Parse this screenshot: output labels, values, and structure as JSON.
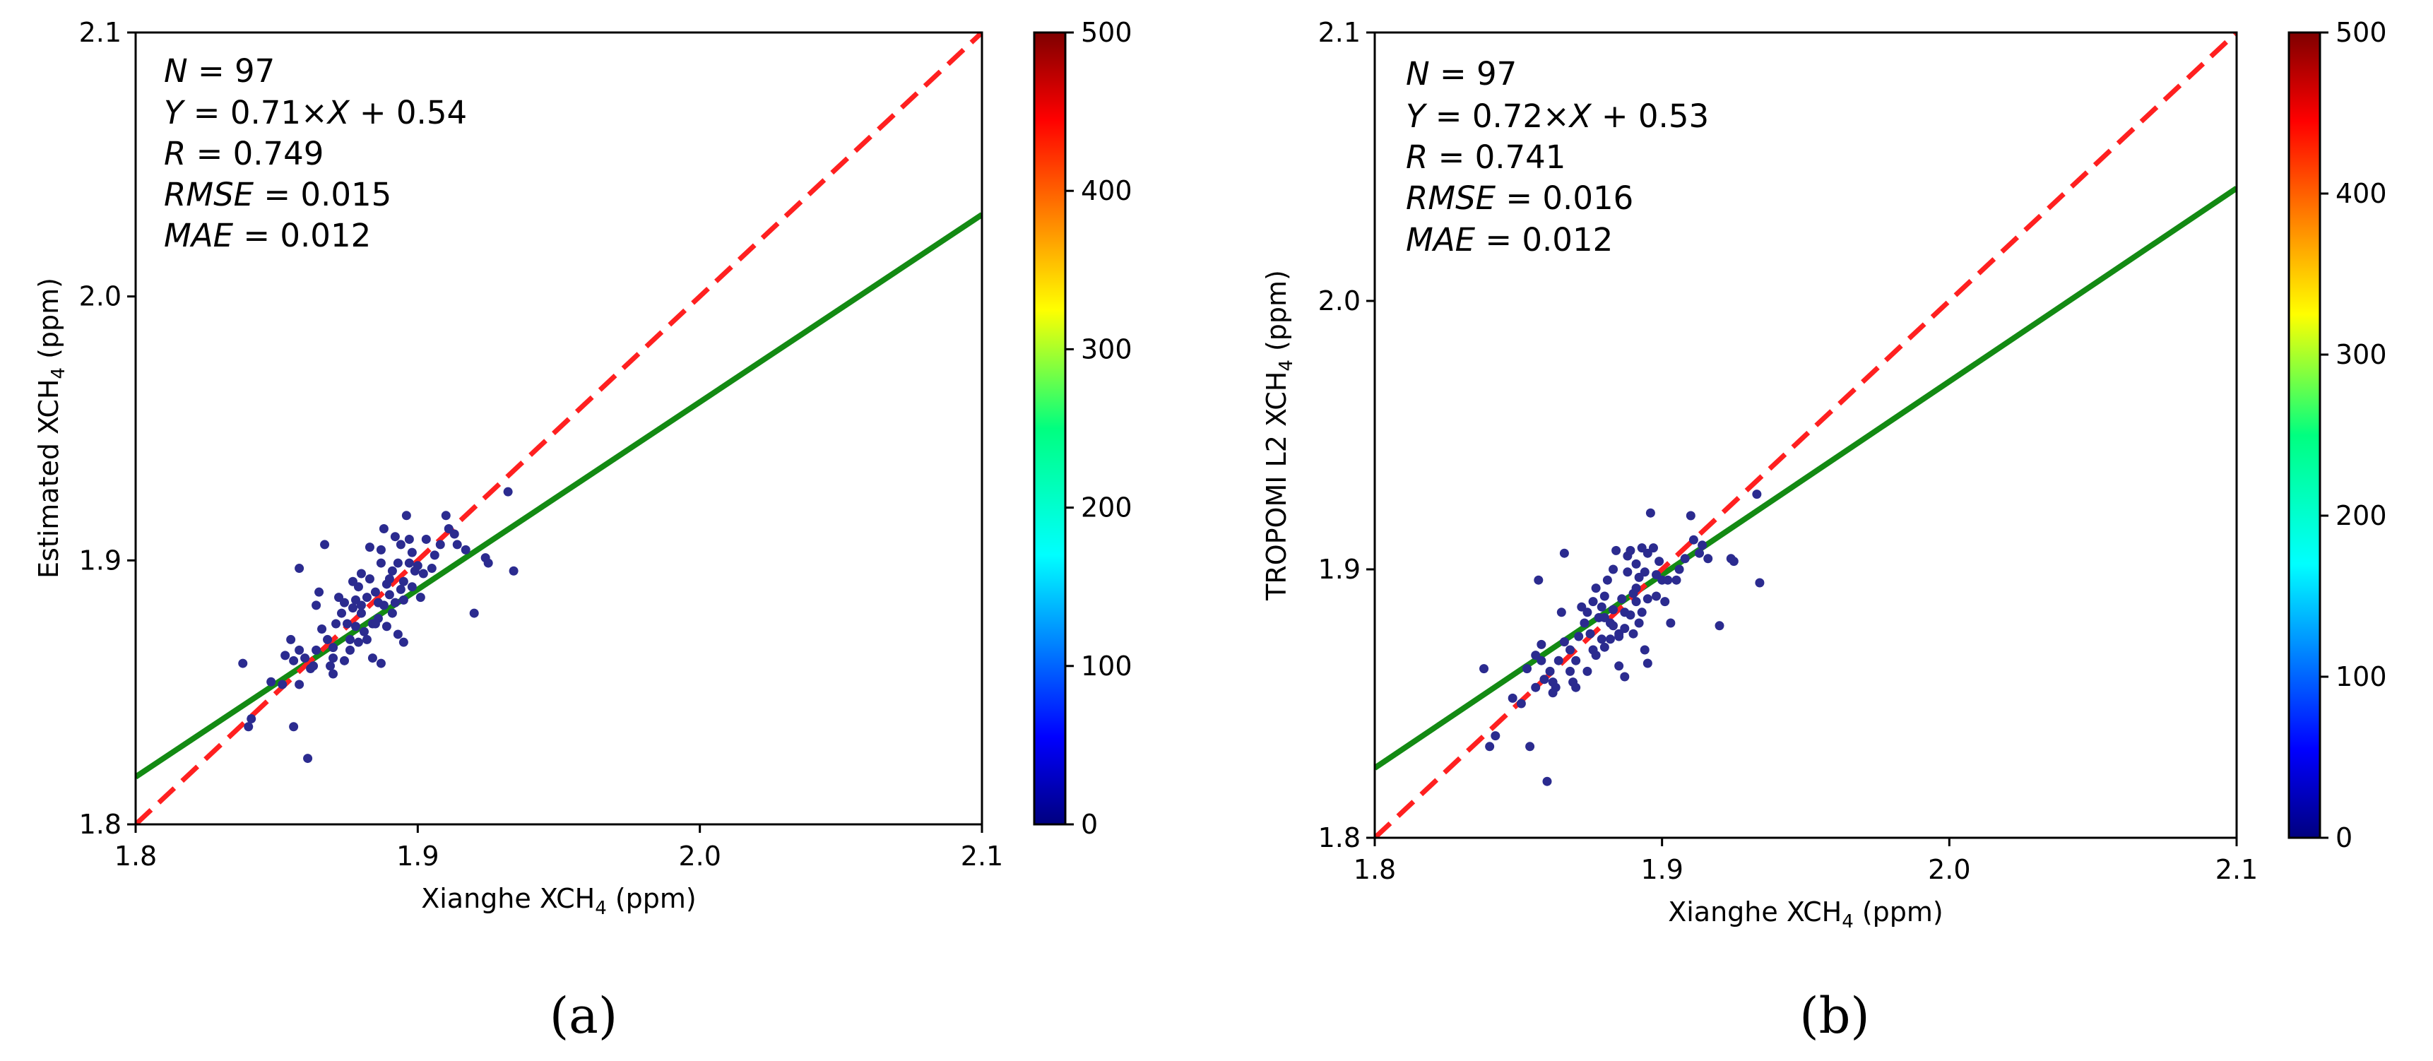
{
  "panels": [
    {
      "label": "(a)",
      "stats": {
        "n": "97",
        "equation_slope": "0.71",
        "equation_intercept": "0.54",
        "r": "0.749",
        "rmse": "0.015",
        "mae": "0.012"
      },
      "axis_label_x": {
        "pre": "Xianghe XCH",
        "sub": "4",
        "post": " (ppm)"
      },
      "axis_label_y": {
        "pre": "Estimated XCH",
        "sub": "4",
        "post": " (ppm)"
      }
    },
    {
      "label": "(b)",
      "stats": {
        "n": "97",
        "equation_slope": "0.72",
        "equation_intercept": "0.53",
        "r": "0.741",
        "rmse": "0.016",
        "mae": "0.012"
      },
      "axis_label_x": {
        "pre": "Xianghe XCH",
        "sub": "4",
        "post": " (ppm)"
      },
      "axis_label_y": {
        "pre": "TROPOMI L2 XCH",
        "sub": "4",
        "post": " (ppm)"
      }
    }
  ],
  "chart_data": [
    {
      "type": "scatter",
      "xlabel": "Xianghe XCH4 (ppm)",
      "ylabel": "Estimated XCH4 (ppm)",
      "xlim": [
        1.8,
        2.1
      ],
      "ylim": [
        1.8,
        2.1
      ],
      "x_ticks": [
        "1.8",
        "1.9",
        "2.0",
        "2.1"
      ],
      "y_ticks": [
        "1.8",
        "1.9",
        "2.0",
        "2.1"
      ],
      "colorbar": {
        "min": 0,
        "max": 500,
        "ticks": [
          "0",
          "100",
          "200",
          "300",
          "400",
          "500"
        ],
        "colormap": "jet"
      },
      "point_color": "#2b2b8f",
      "reference_line": {
        "style": "dashed",
        "color": "#ff2020",
        "slope": 1,
        "intercept": 0
      },
      "fit_line": {
        "color": "#138a13",
        "slope": 0.71,
        "intercept": 0.54
      },
      "points": [
        [
          1.838,
          1.861
        ],
        [
          1.841,
          1.84
        ],
        [
          1.84,
          1.837
        ],
        [
          1.852,
          1.853
        ],
        [
          1.856,
          1.837
        ],
        [
          1.858,
          1.853
        ],
        [
          1.856,
          1.862
        ],
        [
          1.855,
          1.87
        ],
        [
          1.858,
          1.866
        ],
        [
          1.858,
          1.897
        ],
        [
          1.86,
          1.863
        ],
        [
          1.861,
          1.825
        ],
        [
          1.862,
          1.859
        ],
        [
          1.863,
          1.86
        ],
        [
          1.864,
          1.866
        ],
        [
          1.864,
          1.883
        ],
        [
          1.865,
          1.888
        ],
        [
          1.867,
          1.906
        ],
        [
          1.868,
          1.87
        ],
        [
          1.869,
          1.86
        ],
        [
          1.87,
          1.863
        ],
        [
          1.87,
          1.867
        ],
        [
          1.871,
          1.876
        ],
        [
          1.872,
          1.886
        ],
        [
          1.873,
          1.88
        ],
        [
          1.874,
          1.884
        ],
        [
          1.875,
          1.876
        ],
        [
          1.876,
          1.87
        ],
        [
          1.876,
          1.866
        ],
        [
          1.877,
          1.882
        ],
        [
          1.878,
          1.875
        ],
        [
          1.878,
          1.885
        ],
        [
          1.879,
          1.869
        ],
        [
          1.879,
          1.89
        ],
        [
          1.88,
          1.895
        ],
        [
          1.88,
          1.88
        ],
        [
          1.881,
          1.873
        ],
        [
          1.882,
          1.886
        ],
        [
          1.882,
          1.87
        ],
        [
          1.883,
          1.893
        ],
        [
          1.883,
          1.905
        ],
        [
          1.884,
          1.876
        ],
        [
          1.884,
          1.863
        ],
        [
          1.885,
          1.888
        ],
        [
          1.886,
          1.884
        ],
        [
          1.886,
          1.878
        ],
        [
          1.887,
          1.899
        ],
        [
          1.887,
          1.904
        ],
        [
          1.888,
          1.883
        ],
        [
          1.888,
          1.912
        ],
        [
          1.889,
          1.891
        ],
        [
          1.889,
          1.875
        ],
        [
          1.89,
          1.887
        ],
        [
          1.89,
          1.893
        ],
        [
          1.891,
          1.88
        ],
        [
          1.891,
          1.896
        ],
        [
          1.892,
          1.884
        ],
        [
          1.892,
          1.909
        ],
        [
          1.893,
          1.899
        ],
        [
          1.893,
          1.872
        ],
        [
          1.894,
          1.889
        ],
        [
          1.894,
          1.906
        ],
        [
          1.895,
          1.885
        ],
        [
          1.895,
          1.892
        ],
        [
          1.896,
          1.917
        ],
        [
          1.897,
          1.908
        ],
        [
          1.897,
          1.899
        ],
        [
          1.898,
          1.89
        ],
        [
          1.898,
          1.903
        ],
        [
          1.899,
          1.896
        ],
        [
          1.9,
          1.898
        ],
        [
          1.901,
          1.886
        ],
        [
          1.902,
          1.895
        ],
        [
          1.903,
          1.908
        ],
        [
          1.905,
          1.897
        ],
        [
          1.906,
          1.902
        ],
        [
          1.908,
          1.906
        ],
        [
          1.91,
          1.917
        ],
        [
          1.911,
          1.912
        ],
        [
          1.913,
          1.91
        ],
        [
          1.914,
          1.906
        ],
        [
          1.917,
          1.904
        ],
        [
          1.92,
          1.88
        ],
        [
          1.924,
          1.901
        ],
        [
          1.925,
          1.899
        ],
        [
          1.932,
          1.926
        ],
        [
          1.934,
          1.896
        ],
        [
          1.874,
          1.862
        ],
        [
          1.877,
          1.892
        ],
        [
          1.88,
          1.883
        ],
        [
          1.885,
          1.876
        ],
        [
          1.866,
          1.874
        ],
        [
          1.853,
          1.864
        ],
        [
          1.848,
          1.854
        ],
        [
          1.895,
          1.869
        ],
        [
          1.887,
          1.861
        ],
        [
          1.87,
          1.857
        ]
      ]
    },
    {
      "type": "scatter",
      "xlabel": "Xianghe XCH4 (ppm)",
      "ylabel": "TROPOMI L2 XCH4 (ppm)",
      "xlim": [
        1.8,
        2.1
      ],
      "ylim": [
        1.8,
        2.1
      ],
      "x_ticks": [
        "1.8",
        "1.9",
        "2.0",
        "2.1"
      ],
      "y_ticks": [
        "1.8",
        "1.9",
        "2.0",
        "2.1"
      ],
      "colorbar": {
        "min": 0,
        "max": 500,
        "ticks": [
          "0",
          "100",
          "200",
          "300",
          "400",
          "500"
        ],
        "colormap": "jet"
      },
      "point_color": "#2b2b8f",
      "reference_line": {
        "style": "dashed",
        "color": "#ff2020",
        "slope": 1,
        "intercept": 0
      },
      "fit_line": {
        "color": "#138a13",
        "slope": 0.72,
        "intercept": 0.53
      },
      "points": [
        [
          1.838,
          1.863
        ],
        [
          1.84,
          1.834
        ],
        [
          1.842,
          1.838
        ],
        [
          1.851,
          1.85
        ],
        [
          1.854,
          1.834
        ],
        [
          1.856,
          1.856
        ],
        [
          1.856,
          1.868
        ],
        [
          1.857,
          1.896
        ],
        [
          1.858,
          1.866
        ],
        [
          1.859,
          1.859
        ],
        [
          1.86,
          1.821
        ],
        [
          1.861,
          1.862
        ],
        [
          1.862,
          1.858
        ],
        [
          1.863,
          1.856
        ],
        [
          1.864,
          1.866
        ],
        [
          1.865,
          1.884
        ],
        [
          1.866,
          1.906
        ],
        [
          1.868,
          1.862
        ],
        [
          1.868,
          1.87
        ],
        [
          1.869,
          1.858
        ],
        [
          1.87,
          1.866
        ],
        [
          1.871,
          1.875
        ],
        [
          1.872,
          1.886
        ],
        [
          1.873,
          1.88
        ],
        [
          1.874,
          1.884
        ],
        [
          1.875,
          1.876
        ],
        [
          1.876,
          1.87
        ],
        [
          1.877,
          1.868
        ],
        [
          1.878,
          1.882
        ],
        [
          1.879,
          1.874
        ],
        [
          1.879,
          1.886
        ],
        [
          1.88,
          1.871
        ],
        [
          1.88,
          1.89
        ],
        [
          1.881,
          1.896
        ],
        [
          1.882,
          1.88
        ],
        [
          1.882,
          1.874
        ],
        [
          1.883,
          1.885
        ],
        [
          1.883,
          1.9
        ],
        [
          1.884,
          1.907
        ],
        [
          1.885,
          1.876
        ],
        [
          1.885,
          1.864
        ],
        [
          1.886,
          1.889
        ],
        [
          1.887,
          1.884
        ],
        [
          1.887,
          1.878
        ],
        [
          1.888,
          1.899
        ],
        [
          1.888,
          1.905
        ],
        [
          1.889,
          1.883
        ],
        [
          1.889,
          1.907
        ],
        [
          1.89,
          1.891
        ],
        [
          1.89,
          1.876
        ],
        [
          1.891,
          1.888
        ],
        [
          1.891,
          1.893
        ],
        [
          1.892,
          1.88
        ],
        [
          1.892,
          1.897
        ],
        [
          1.893,
          1.884
        ],
        [
          1.893,
          1.908
        ],
        [
          1.894,
          1.899
        ],
        [
          1.894,
          1.87
        ],
        [
          1.895,
          1.889
        ],
        [
          1.895,
          1.906
        ],
        [
          1.896,
          1.921
        ],
        [
          1.897,
          1.908
        ],
        [
          1.898,
          1.898
        ],
        [
          1.898,
          1.89
        ],
        [
          1.899,
          1.903
        ],
        [
          1.9,
          1.896
        ],
        [
          1.901,
          1.888
        ],
        [
          1.902,
          1.896
        ],
        [
          1.903,
          1.88
        ],
        [
          1.905,
          1.896
        ],
        [
          1.906,
          1.9
        ],
        [
          1.908,
          1.904
        ],
        [
          1.91,
          1.92
        ],
        [
          1.911,
          1.911
        ],
        [
          1.913,
          1.906
        ],
        [
          1.914,
          1.909
        ],
        [
          1.916,
          1.904
        ],
        [
          1.92,
          1.879
        ],
        [
          1.924,
          1.904
        ],
        [
          1.925,
          1.903
        ],
        [
          1.933,
          1.928
        ],
        [
          1.934,
          1.895
        ],
        [
          1.874,
          1.862
        ],
        [
          1.877,
          1.893
        ],
        [
          1.88,
          1.882
        ],
        [
          1.885,
          1.875
        ],
        [
          1.866,
          1.873
        ],
        [
          1.853,
          1.863
        ],
        [
          1.848,
          1.852
        ],
        [
          1.895,
          1.865
        ],
        [
          1.887,
          1.86
        ],
        [
          1.87,
          1.856
        ],
        [
          1.876,
          1.888
        ],
        [
          1.883,
          1.879
        ],
        [
          1.858,
          1.872
        ],
        [
          1.862,
          1.854
        ],
        [
          1.891,
          1.902
        ]
      ]
    }
  ]
}
